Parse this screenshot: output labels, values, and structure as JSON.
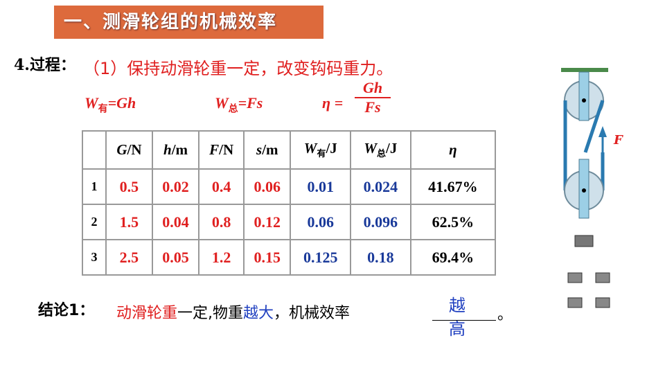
{
  "header": {
    "title": "一、测滑轮组的机械效率"
  },
  "step": {
    "label": "4.过程：",
    "text": "（1）保持动滑轮重一定，改变钩码重力。"
  },
  "formulas": [
    {
      "main": "W",
      "sub": "有",
      "rest": "=Gh"
    },
    {
      "main": "W",
      "sub": "总",
      "rest": "=Fs"
    },
    {
      "main": "η =",
      "numerator": "Gh",
      "denominator": "Fs"
    }
  ],
  "table": {
    "header": [
      {
        "main": "G",
        "unit": "/N"
      },
      {
        "main": "h",
        "unit": "/m"
      },
      {
        "main": "F",
        "unit": "/N"
      },
      {
        "main": "s",
        "unit": "/m"
      },
      {
        "main": "W",
        "sub": "有",
        "unit": "/J"
      },
      {
        "main": "W",
        "sub": "总",
        "unit": "/J"
      },
      {
        "main": "η"
      }
    ],
    "rows": [
      [
        "1",
        "0.5",
        "0.02",
        "0.4",
        "0.06",
        "0.01",
        "0.024",
        "41.67%"
      ],
      [
        "2",
        "1.5",
        "0.04",
        "0.8",
        "0.12",
        "0.06",
        "0.096",
        "62.5%"
      ],
      [
        "3",
        "2.5",
        "0.05",
        "1.2",
        "0.15",
        "0.125",
        "0.18",
        "69.4%"
      ]
    ]
  },
  "conclusion": {
    "label": "结论1：",
    "parts": [
      "动滑轮重",
      "一定,物重",
      "越大",
      "，机械效率"
    ],
    "answer": [
      "越",
      "高"
    ],
    "end": "。"
  },
  "diagram": {
    "force_label": "F"
  }
}
